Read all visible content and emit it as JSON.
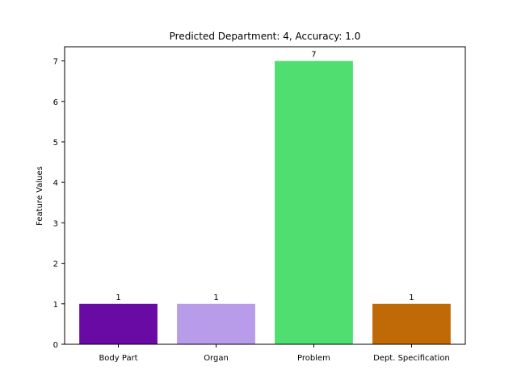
{
  "chart_data": {
    "type": "bar",
    "title": "Predicted Department: 4, Accuracy: 1.0",
    "xlabel": "",
    "ylabel": "Feature Values",
    "categories": [
      "Body Part",
      "Organ",
      "Problem",
      "Dept. Specification"
    ],
    "values": [
      1,
      1,
      7,
      1
    ],
    "data_labels": [
      "1",
      "1",
      "7",
      "1"
    ],
    "colors": [
      "#6a0aa4",
      "#b89ce9",
      "#50de70",
      "#bf6a06"
    ],
    "ylim": [
      0,
      7.35
    ],
    "yticks": [
      0,
      1,
      2,
      3,
      4,
      5,
      6,
      7
    ],
    "ytick_labels": [
      "0",
      "1",
      "2",
      "3",
      "4",
      "5",
      "6",
      "7"
    ],
    "grid": false,
    "legend": "none"
  }
}
